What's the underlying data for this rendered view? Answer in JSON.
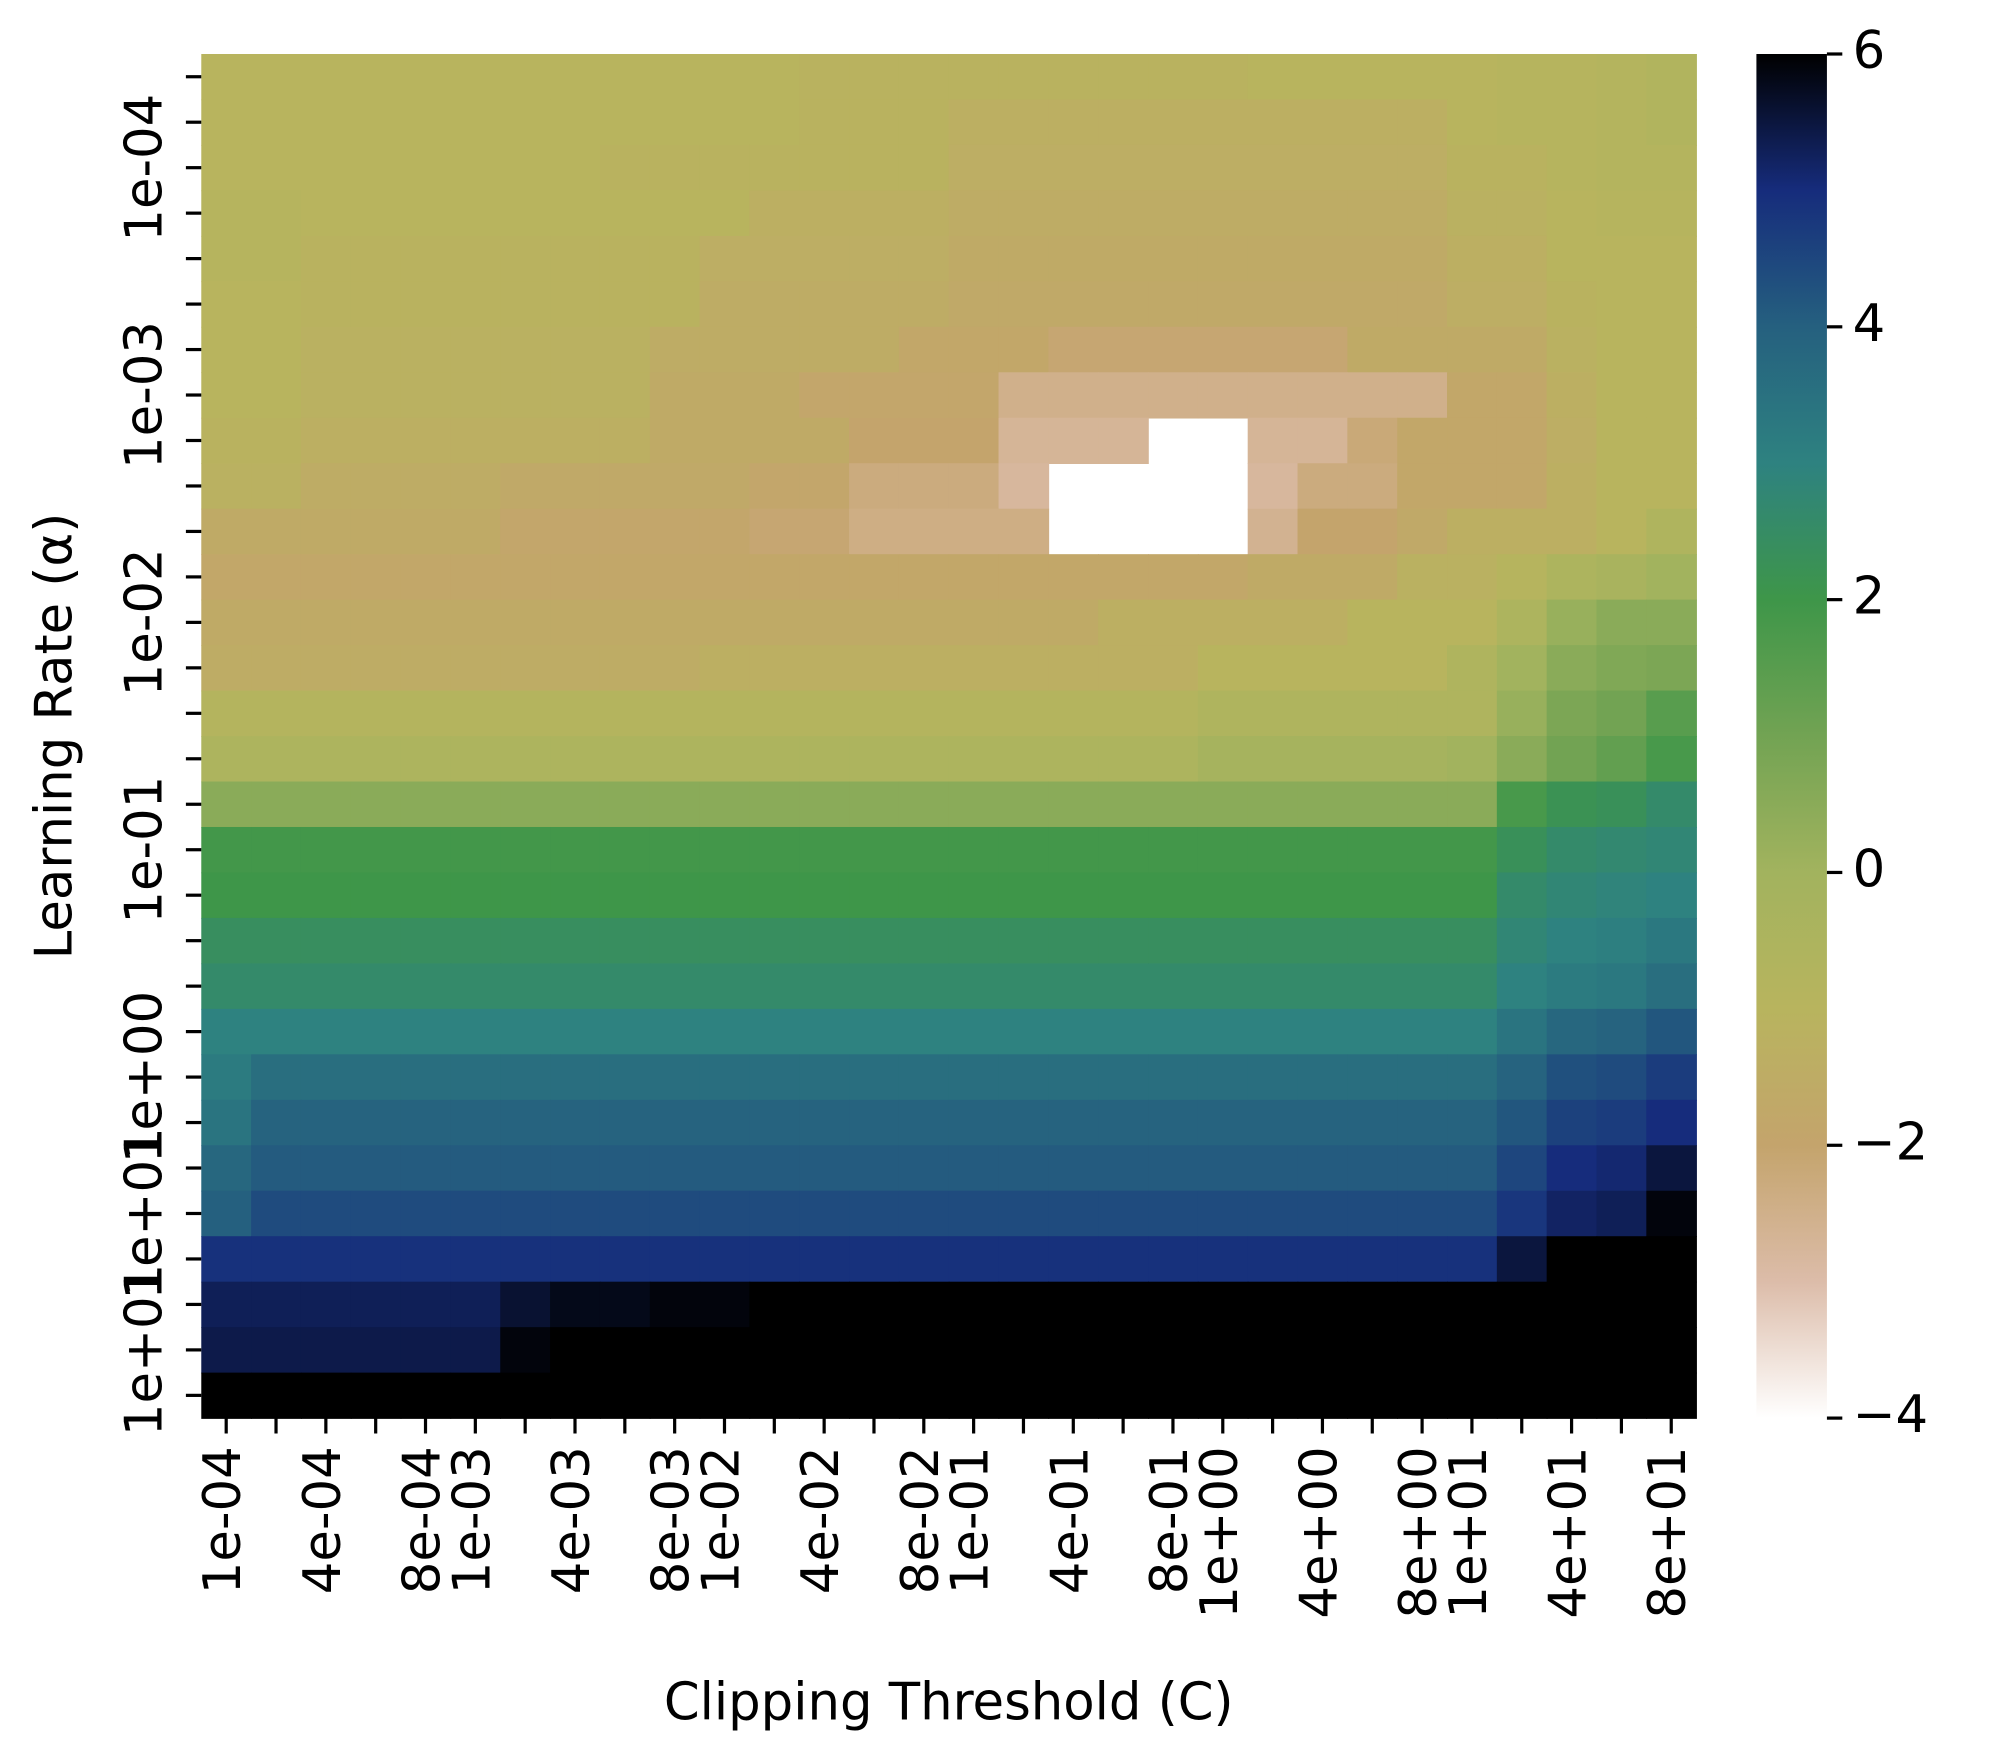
{
  "chart_data": {
    "type": "heatmap",
    "xlabel": "Clipping Threshold (C)",
    "ylabel": "Learning Rate (α)",
    "x_categories": [
      "1e-04",
      null,
      "4e-04",
      null,
      "8e-04",
      "1e-03",
      null,
      "4e-03",
      null,
      "8e-03",
      "1e-02",
      null,
      "4e-02",
      null,
      "8e-02",
      "1e-01",
      null,
      "4e-01",
      null,
      "8e-01",
      "1e+00",
      null,
      "4e+00",
      null,
      "8e+00",
      "1e+01",
      null,
      "4e+01",
      null,
      "8e+01"
    ],
    "y_categories": [
      null,
      null,
      "1e-04",
      null,
      null,
      null,
      null,
      "1e-03",
      null,
      null,
      null,
      null,
      "1e-02",
      null,
      null,
      null,
      null,
      "1e-01",
      null,
      null,
      null,
      null,
      "1e+00",
      null,
      null,
      "1e+01",
      null,
      null,
      "1e+01",
      null
    ],
    "values": [
      [
        -1.0,
        -1.0,
        -1.0,
        -1.0,
        -1.0,
        -1.0,
        -1.0,
        -1.0,
        -1.0,
        -1.0,
        -1.0,
        -1.0,
        -1.1,
        -1.1,
        -1.1,
        -1.1,
        -1.1,
        -1.1,
        -1.1,
        -1.1,
        -1.1,
        -1.0,
        -1.0,
        -1.0,
        -1.0,
        -1.0,
        -0.9,
        -0.9,
        -0.8,
        -0.7
      ],
      [
        -1.0,
        -1.0,
        -1.0,
        -1.0,
        -1.0,
        -1.0,
        -1.0,
        -1.0,
        -1.0,
        -1.0,
        -1.0,
        -1.0,
        -1.1,
        -1.1,
        -1.1,
        -1.3,
        -1.3,
        -1.3,
        -1.3,
        -1.3,
        -1.3,
        -1.3,
        -1.3,
        -1.3,
        -1.3,
        -1.0,
        -0.9,
        -0.9,
        -0.8,
        -0.7
      ],
      [
        -1.0,
        -1.0,
        -1.0,
        -1.0,
        -1.0,
        -1.0,
        -1.0,
        -1.0,
        -1.1,
        -1.1,
        -1.1,
        -1.1,
        -1.1,
        -1.1,
        -1.1,
        -1.4,
        -1.4,
        -1.4,
        -1.4,
        -1.4,
        -1.4,
        -1.4,
        -1.4,
        -1.4,
        -1.4,
        -1.1,
        -1.1,
        -0.9,
        -0.8,
        -0.8
      ],
      [
        -0.9,
        -0.9,
        -1.0,
        -1.0,
        -1.0,
        -1.0,
        -1.0,
        -1.0,
        -1.0,
        -1.0,
        -1.0,
        -1.3,
        -1.3,
        -1.3,
        -1.3,
        -1.5,
        -1.5,
        -1.5,
        -1.5,
        -1.5,
        -1.5,
        -1.5,
        -1.5,
        -1.5,
        -1.5,
        -1.2,
        -1.2,
        -1.0,
        -0.9,
        -0.9
      ],
      [
        -0.9,
        -0.9,
        -1.1,
        -1.1,
        -1.1,
        -1.1,
        -1.1,
        -1.1,
        -1.1,
        -1.1,
        -1.4,
        -1.4,
        -1.4,
        -1.4,
        -1.4,
        -1.6,
        -1.6,
        -1.6,
        -1.6,
        -1.6,
        -1.6,
        -1.6,
        -1.6,
        -1.6,
        -1.6,
        -1.3,
        -1.3,
        -1.0,
        -1.0,
        -1.0
      ],
      [
        -1.0,
        -1.0,
        -1.1,
        -1.1,
        -1.1,
        -1.1,
        -1.1,
        -1.1,
        -1.1,
        -1.1,
        -1.5,
        -1.5,
        -1.5,
        -1.5,
        -1.5,
        -1.7,
        -1.7,
        -1.7,
        -1.7,
        -1.7,
        -1.7,
        -1.7,
        -1.7,
        -1.7,
        -1.7,
        -1.4,
        -1.4,
        -1.1,
        -1.0,
        -1.0
      ],
      [
        -1.0,
        -1.0,
        -1.2,
        -1.2,
        -1.2,
        -1.2,
        -1.2,
        -1.2,
        -1.2,
        -1.5,
        -1.5,
        -1.5,
        -1.5,
        -1.5,
        -1.8,
        -1.8,
        -1.8,
        -2.1,
        -2.1,
        -2.1,
        -2.1,
        -2.1,
        -2.1,
        -1.6,
        -1.6,
        -1.6,
        -1.6,
        -1.2,
        -1.0,
        -1.0
      ],
      [
        -1.0,
        -1.0,
        -1.2,
        -1.2,
        -1.2,
        -1.2,
        -1.2,
        -1.2,
        -1.2,
        -1.6,
        -1.6,
        -1.6,
        -1.9,
        -1.9,
        -1.9,
        -1.9,
        -2.5,
        -2.5,
        -2.5,
        -2.5,
        -2.5,
        -2.5,
        -2.5,
        -2.5,
        -2.5,
        -1.8,
        -1.8,
        -1.3,
        -1.0,
        -1.0
      ],
      [
        -1.1,
        -1.1,
        -1.3,
        -1.3,
        -1.3,
        -1.3,
        -1.3,
        -1.3,
        -1.3,
        -1.6,
        -1.6,
        -1.6,
        -1.6,
        -2.0,
        -2.0,
        -2.0,
        -2.7,
        -2.7,
        -2.7,
        null,
        null,
        -2.7,
        -2.7,
        -2.2,
        -1.8,
        -1.8,
        -1.8,
        -1.4,
        -1.0,
        -1.0
      ],
      [
        -1.2,
        -1.2,
        -1.5,
        -1.5,
        -1.5,
        -1.5,
        -1.7,
        -1.7,
        -1.7,
        -1.7,
        -1.7,
        -1.9,
        -1.9,
        -2.3,
        -2.3,
        -2.3,
        -2.8,
        null,
        null,
        null,
        null,
        -2.8,
        -2.3,
        -2.3,
        -1.8,
        -1.8,
        -1.8,
        -1.3,
        -1.0,
        -1.0
      ],
      [
        -1.6,
        -1.6,
        -1.6,
        -1.6,
        -1.6,
        -1.6,
        -1.9,
        -1.9,
        -1.9,
        -1.9,
        -1.9,
        -2.1,
        -2.1,
        -2.4,
        -2.4,
        -2.4,
        -2.4,
        null,
        null,
        null,
        null,
        -2.6,
        -2.0,
        -2.0,
        -1.7,
        -1.3,
        -1.3,
        -1.3,
        -1.0,
        -0.6
      ],
      [
        -1.8,
        -1.8,
        -1.8,
        -1.8,
        -1.8,
        -1.8,
        -1.8,
        -1.8,
        -1.8,
        -1.8,
        -1.8,
        -1.8,
        -1.8,
        -1.8,
        -1.8,
        -1.8,
        -1.8,
        -1.8,
        -1.8,
        -1.8,
        -1.8,
        -1.6,
        -1.6,
        -1.6,
        -1.2,
        -1.2,
        -0.9,
        -0.5,
        -0.3,
        0.0
      ],
      [
        -1.6,
        -1.6,
        -1.6,
        -1.6,
        -1.6,
        -1.6,
        -1.6,
        -1.6,
        -1.6,
        -1.6,
        -1.6,
        -1.6,
        -1.6,
        -1.6,
        -1.6,
        -1.6,
        -1.6,
        -1.6,
        -1.3,
        -1.3,
        -1.3,
        -1.3,
        -1.3,
        -1.0,
        -1.0,
        -1.0,
        -0.5,
        0.2,
        0.5,
        0.5
      ],
      [
        -1.5,
        -1.5,
        -1.5,
        -1.5,
        -1.5,
        -1.5,
        -1.5,
        -1.5,
        -1.5,
        -1.5,
        -1.3,
        -1.3,
        -1.3,
        -1.3,
        -1.3,
        -1.3,
        -1.3,
        -1.3,
        -1.3,
        -1.3,
        -1.0,
        -1.0,
        -1.0,
        -1.0,
        -1.0,
        -0.6,
        0.0,
        0.5,
        0.7,
        0.8
      ],
      [
        -0.8,
        -0.8,
        -0.8,
        -0.8,
        -0.8,
        -0.8,
        -0.8,
        -0.8,
        -0.8,
        -0.8,
        -0.8,
        -0.8,
        -0.8,
        -0.8,
        -0.8,
        -0.8,
        -0.8,
        -0.8,
        -0.8,
        -0.8,
        -0.6,
        -0.6,
        -0.6,
        -0.6,
        -0.6,
        -0.6,
        0.2,
        0.8,
        1.0,
        1.5
      ],
      [
        -0.5,
        -0.5,
        -0.5,
        -0.5,
        -0.5,
        -0.5,
        -0.5,
        -0.5,
        -0.5,
        -0.5,
        -0.5,
        -0.5,
        -0.5,
        -0.5,
        -0.5,
        -0.5,
        -0.5,
        -0.5,
        -0.5,
        -0.5,
        -0.2,
        -0.2,
        -0.2,
        -0.2,
        -0.2,
        0.0,
        0.5,
        1.0,
        1.3,
        1.8
      ],
      [
        0.5,
        0.5,
        0.5,
        0.5,
        0.5,
        0.5,
        0.5,
        0.5,
        0.5,
        0.5,
        0.5,
        0.5,
        0.5,
        0.5,
        0.5,
        0.5,
        0.5,
        0.5,
        0.5,
        0.5,
        0.5,
        0.5,
        0.5,
        0.5,
        0.5,
        0.5,
        1.8,
        2.2,
        2.3,
        2.6
      ],
      [
        1.9,
        1.9,
        1.9,
        1.9,
        1.9,
        1.9,
        1.9,
        1.9,
        1.9,
        1.9,
        1.9,
        1.9,
        1.9,
        1.9,
        1.9,
        1.9,
        1.9,
        1.9,
        1.9,
        1.9,
        1.9,
        1.9,
        1.9,
        1.9,
        1.9,
        1.9,
        2.3,
        2.6,
        2.7,
        2.8
      ],
      [
        2.0,
        2.0,
        2.0,
        2.0,
        2.0,
        2.0,
        2.0,
        2.0,
        2.0,
        2.0,
        2.0,
        2.0,
        2.0,
        2.0,
        2.0,
        2.0,
        2.0,
        2.0,
        2.0,
        2.0,
        2.0,
        2.0,
        2.0,
        2.0,
        2.0,
        2.0,
        2.6,
        2.8,
        2.9,
        3.0
      ],
      [
        2.4,
        2.4,
        2.4,
        2.4,
        2.4,
        2.4,
        2.4,
        2.4,
        2.4,
        2.4,
        2.4,
        2.4,
        2.4,
        2.4,
        2.4,
        2.4,
        2.4,
        2.4,
        2.4,
        2.4,
        2.4,
        2.4,
        2.4,
        2.4,
        2.4,
        2.4,
        2.8,
        3.0,
        3.1,
        3.3
      ],
      [
        2.6,
        2.6,
        2.6,
        2.6,
        2.6,
        2.6,
        2.6,
        2.6,
        2.6,
        2.6,
        2.6,
        2.6,
        2.6,
        2.6,
        2.6,
        2.6,
        2.6,
        2.6,
        2.6,
        2.6,
        2.6,
        2.6,
        2.6,
        2.6,
        2.6,
        2.6,
        3.0,
        3.2,
        3.3,
        3.6
      ],
      [
        3.0,
        3.0,
        3.0,
        3.0,
        3.0,
        3.0,
        3.0,
        3.0,
        3.0,
        3.0,
        3.0,
        3.0,
        3.0,
        3.0,
        3.0,
        3.0,
        3.0,
        3.0,
        3.0,
        3.0,
        3.0,
        3.0,
        3.0,
        3.0,
        3.0,
        3.0,
        3.4,
        3.8,
        3.9,
        4.2
      ],
      [
        3.2,
        3.6,
        3.6,
        3.6,
        3.6,
        3.6,
        3.6,
        3.6,
        3.6,
        3.6,
        3.6,
        3.6,
        3.6,
        3.6,
        3.6,
        3.6,
        3.6,
        3.6,
        3.6,
        3.6,
        3.6,
        3.6,
        3.6,
        3.6,
        3.6,
        3.6,
        3.9,
        4.3,
        4.4,
        4.7
      ],
      [
        3.4,
        3.9,
        3.9,
        3.9,
        3.9,
        3.9,
        3.9,
        3.9,
        3.9,
        3.9,
        3.9,
        3.9,
        3.9,
        3.9,
        3.9,
        3.9,
        3.9,
        3.9,
        3.9,
        3.9,
        3.9,
        3.9,
        3.9,
        3.9,
        3.9,
        3.9,
        4.2,
        4.6,
        4.7,
        5.0
      ],
      [
        3.8,
        4.1,
        4.1,
        4.1,
        4.1,
        4.1,
        4.1,
        4.1,
        4.1,
        4.1,
        4.1,
        4.1,
        4.1,
        4.1,
        4.1,
        4.1,
        4.1,
        4.1,
        4.1,
        4.1,
        4.1,
        4.1,
        4.1,
        4.1,
        4.1,
        4.1,
        4.5,
        5.0,
        5.1,
        5.5
      ],
      [
        4.0,
        4.4,
        4.4,
        4.4,
        4.4,
        4.4,
        4.4,
        4.4,
        4.4,
        4.4,
        4.4,
        4.4,
        4.4,
        4.4,
        4.4,
        4.4,
        4.4,
        4.4,
        4.4,
        4.4,
        4.4,
        4.4,
        4.4,
        4.4,
        4.4,
        4.4,
        4.8,
        5.2,
        5.3,
        5.9
      ],
      [
        4.9,
        4.9,
        4.9,
        4.9,
        4.9,
        4.9,
        4.9,
        4.9,
        4.9,
        4.9,
        4.9,
        4.9,
        4.9,
        4.9,
        4.9,
        4.9,
        4.9,
        4.9,
        4.9,
        4.9,
        4.9,
        4.9,
        4.9,
        4.9,
        4.9,
        4.9,
        5.5,
        6,
        6,
        6
      ],
      [
        5.3,
        5.3,
        5.3,
        5.3,
        5.3,
        5.3,
        5.6,
        5.8,
        5.8,
        5.9,
        5.9,
        6,
        6,
        6,
        6,
        6,
        6,
        6,
        6,
        6,
        6,
        6,
        6,
        6,
        6,
        6,
        6,
        6,
        6,
        6
      ],
      [
        5.4,
        5.4,
        5.4,
        5.4,
        5.4,
        5.4,
        5.9,
        6,
        6,
        6,
        6,
        6,
        6,
        6,
        6,
        6,
        6,
        6,
        6,
        6,
        6,
        6,
        6,
        6,
        6,
        6,
        6,
        6,
        6,
        6
      ],
      [
        6,
        6,
        6,
        6,
        6,
        6,
        6,
        6,
        6,
        6,
        6,
        6,
        6,
        6,
        6,
        6,
        6,
        6,
        6,
        6,
        6,
        6,
        6,
        6,
        6,
        6,
        6,
        6,
        6,
        6
      ]
    ],
    "zlim": [
      -4,
      6
    ],
    "zticks": [
      {
        "value": -4,
        "label": "−4"
      },
      {
        "value": -2,
        "label": "−2"
      },
      0,
      2,
      4,
      6
    ],
    "colors": [
      "#ffffff",
      "#dcbca9",
      "#c4a46c",
      "#b8b45e",
      "#a2b35e",
      "#72a353",
      "#3e9649",
      "#2e8280",
      "#25607f",
      "#162c7c",
      "#000000"
    ]
  }
}
